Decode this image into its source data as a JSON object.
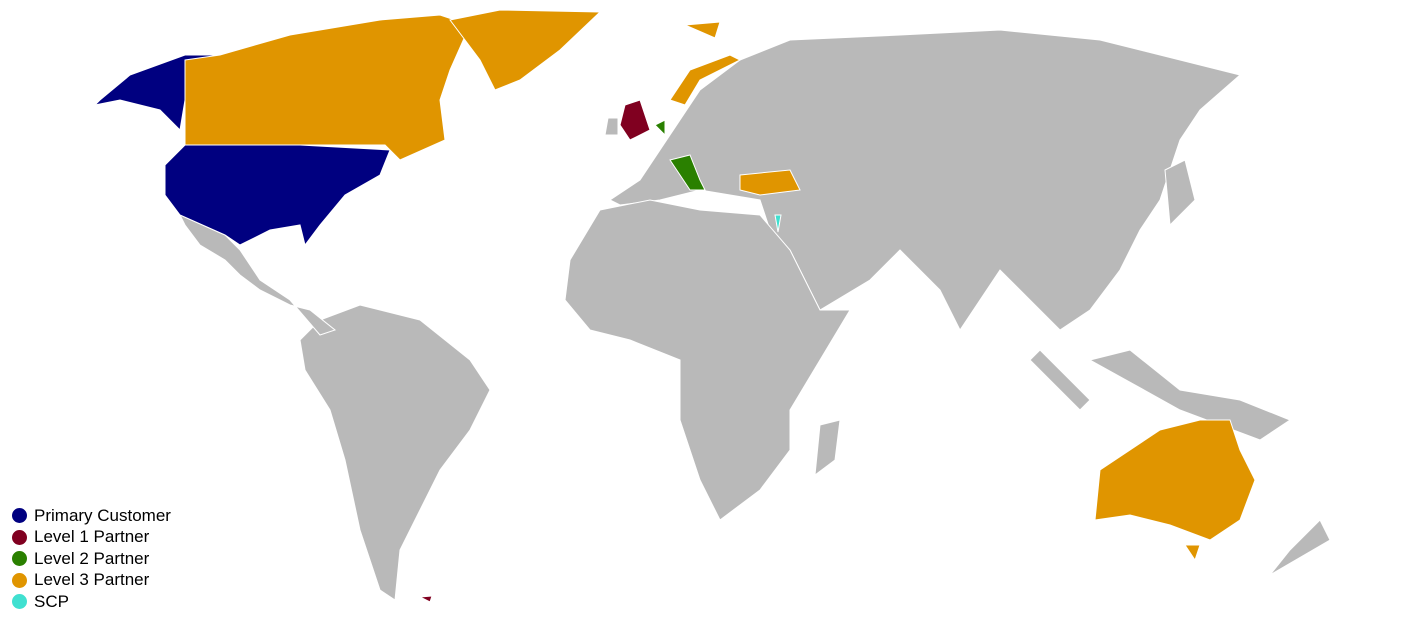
{
  "map": {
    "type": "choropleth world map",
    "default_color": "#b9b9b9",
    "legend": [
      {
        "label": "Primary Customer",
        "color": "#000080",
        "countries": [
          "United States"
        ]
      },
      {
        "label": "Level 1 Partner",
        "color": "#800020",
        "countries": [
          "United Kingdom"
        ]
      },
      {
        "label": "Level 2 Partner",
        "color": "#2a8000",
        "countries": [
          "Italy",
          "Netherlands"
        ]
      },
      {
        "label": "Level 3 Partner",
        "color": "#e09500",
        "countries": [
          "Canada",
          "Australia",
          "Turkey",
          "Norway",
          "Denmark"
        ]
      },
      {
        "label": "SCP",
        "color": "#40e0d0",
        "countries": [
          "Israel"
        ]
      }
    ]
  }
}
